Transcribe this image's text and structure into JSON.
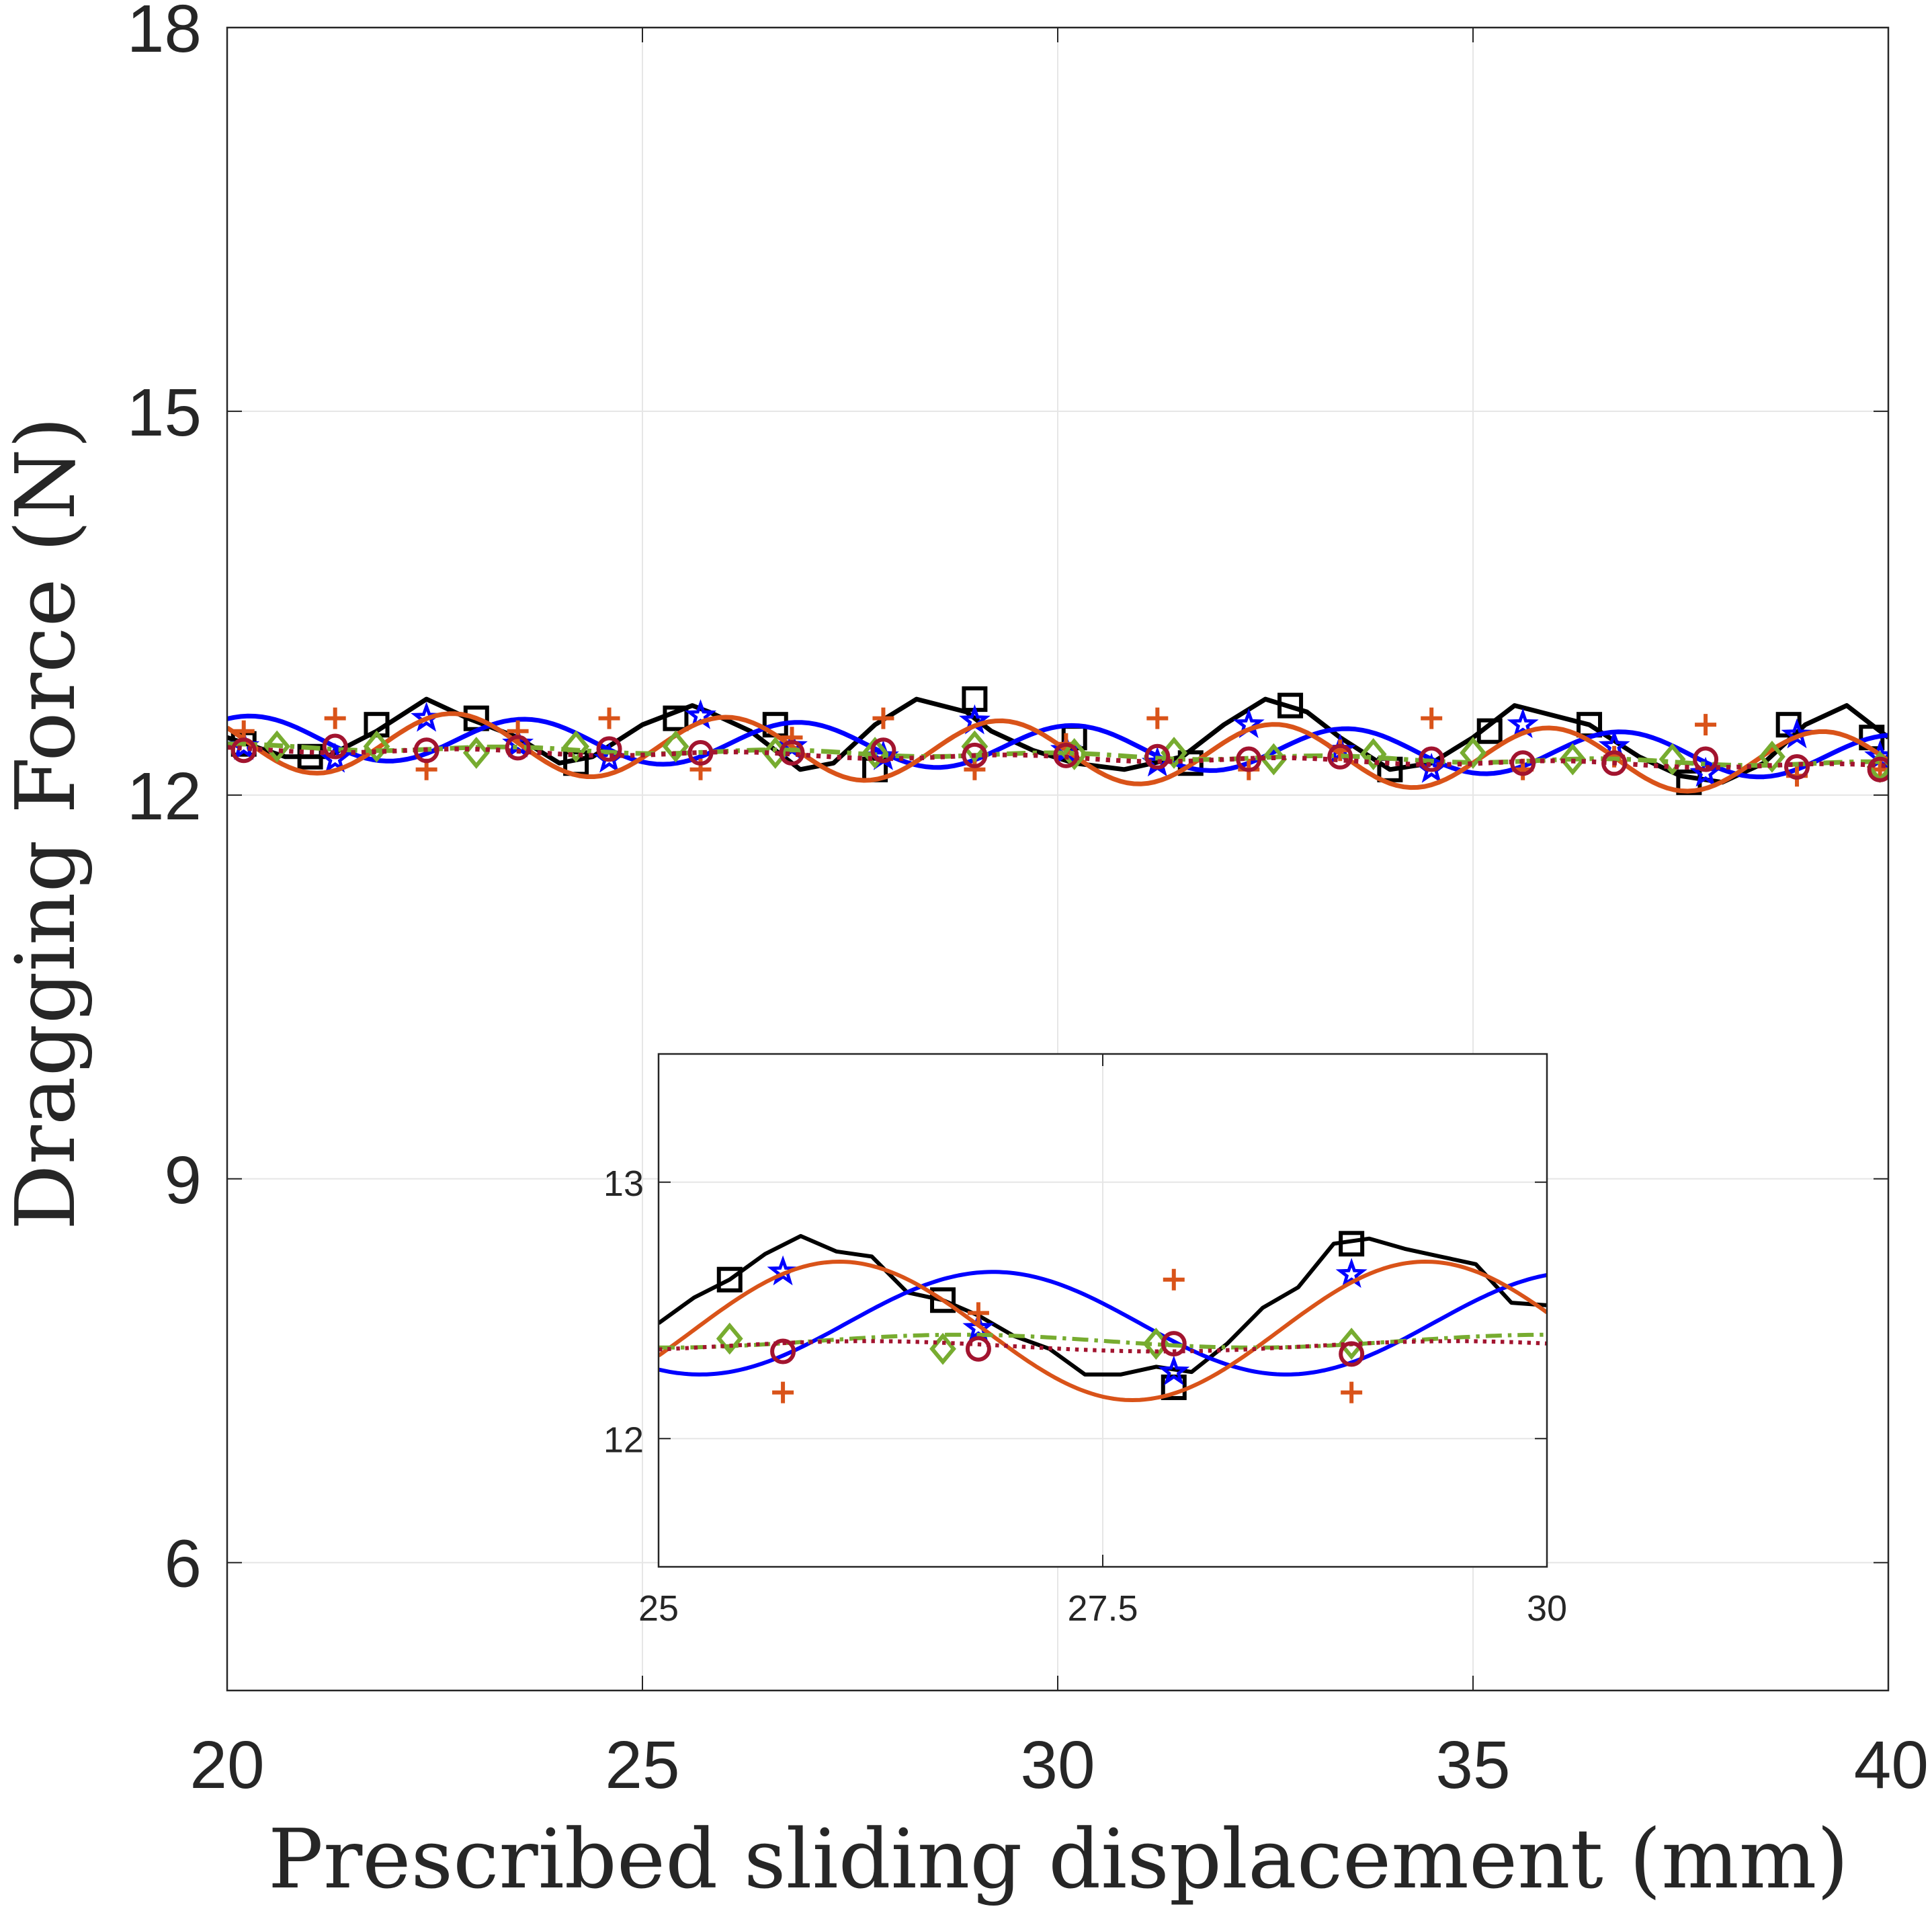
{
  "chart_data": [
    {
      "type": "line",
      "title": "",
      "xlabel": "Prescribed sliding displacement (mm)",
      "ylabel": "Dragging Force (N)",
      "xlim": [
        20,
        40
      ],
      "ylim": [
        5,
        18
      ],
      "x_ticks": [
        "20",
        "25",
        "30",
        "35",
        "40"
      ],
      "y_ticks": [
        "6",
        "9",
        "12",
        "15",
        "18"
      ],
      "x_tick_values": [
        20,
        25,
        30,
        35,
        40
      ],
      "y_tick_values": [
        6,
        9,
        12,
        15,
        18
      ],
      "grid": true,
      "legend": "none",
      "series": [
        {
          "color": "#000000",
          "marker": "square",
          "style": "solid",
          "x": [
            20.0,
            20.7,
            21.2,
            21.8,
            22.4,
            22.9,
            23.5,
            24.0,
            24.4,
            25.0,
            25.6,
            25.8,
            26.3,
            26.9,
            27.3,
            27.8,
            28.3,
            28.9,
            29.2,
            29.7,
            30.2,
            30.8,
            31.5,
            32.0,
            32.5,
            33.0,
            33.4,
            34.0,
            34.5,
            35.0,
            35.5,
            35.8,
            36.4,
            37.0,
            37.5,
            38.0,
            38.5,
            39.0,
            39.5,
            40.0
          ],
          "y": [
            12.45,
            12.3,
            12.3,
            12.5,
            12.75,
            12.6,
            12.45,
            12.25,
            12.3,
            12.55,
            12.7,
            12.65,
            12.5,
            12.2,
            12.25,
            12.55,
            12.75,
            12.65,
            12.5,
            12.35,
            12.25,
            12.2,
            12.3,
            12.55,
            12.75,
            12.65,
            12.45,
            12.2,
            12.25,
            12.45,
            12.7,
            12.65,
            12.55,
            12.3,
            12.15,
            12.1,
            12.25,
            12.55,
            12.7,
            12.45
          ],
          "marker_x": [
            20.2,
            21.0,
            21.8,
            23.0,
            24.2,
            25.4,
            26.6,
            27.8,
            29.0,
            30.2,
            31.6,
            32.8,
            34.0,
            35.2,
            36.4,
            37.6,
            38.8,
            39.8
          ],
          "marker_y": [
            12.4,
            12.3,
            12.55,
            12.6,
            12.25,
            12.6,
            12.55,
            12.2,
            12.75,
            12.45,
            12.25,
            12.7,
            12.2,
            12.5,
            12.55,
            12.1,
            12.55,
            12.45
          ]
        },
        {
          "color": "#0000ff",
          "marker": "star",
          "style": "solid",
          "amp": 0.17,
          "offset": 12.45,
          "offset_slope": -0.0075,
          "period": 3.3,
          "phase": 0.65,
          "marker_x": [
            20.2,
            21.3,
            22.4,
            23.5,
            24.6,
            25.7,
            26.8,
            27.9,
            29.0,
            30.1,
            31.2,
            32.3,
            33.4,
            34.5,
            35.6,
            36.7,
            37.8,
            38.9,
            39.9
          ],
          "marker_y": [
            12.38,
            12.28,
            12.6,
            12.4,
            12.28,
            12.62,
            12.38,
            12.3,
            12.58,
            12.35,
            12.25,
            12.55,
            12.35,
            12.2,
            12.55,
            12.38,
            12.17,
            12.47,
            12.3
          ]
        },
        {
          "color": "#d95319",
          "marker": "plus",
          "style": "solid",
          "amp": 0.24,
          "offset": 12.42,
          "offset_slope": -0.0085,
          "period": 3.3,
          "phase": 2.3,
          "marker_x": [
            20.2,
            21.3,
            22.4,
            23.5,
            24.6,
            25.7,
            26.8,
            27.9,
            29.0,
            30.1,
            31.2,
            32.3,
            33.4,
            34.5,
            35.6,
            36.7,
            37.8,
            38.9,
            39.9
          ],
          "marker_y": [
            12.5,
            12.6,
            12.2,
            12.5,
            12.6,
            12.2,
            12.45,
            12.6,
            12.2,
            12.4,
            12.6,
            12.2,
            12.35,
            12.6,
            12.2,
            12.3,
            12.55,
            12.15,
            12.2
          ]
        },
        {
          "color": "#77ac30",
          "marker": "diamond",
          "style": "dash-dot",
          "amp": 0.02,
          "offset": 12.38,
          "offset_slope": -0.007,
          "period": 3.3,
          "phase": 1.0,
          "marker_x": [
            20.6,
            21.8,
            23.0,
            24.2,
            25.4,
            26.6,
            27.8,
            29.0,
            30.2,
            31.4,
            32.6,
            33.8,
            35.0,
            36.2,
            37.4,
            38.6,
            39.9
          ],
          "marker_y": [
            12.38,
            12.38,
            12.33,
            12.38,
            12.38,
            12.33,
            12.33,
            12.38,
            12.32,
            12.33,
            12.28,
            12.32,
            12.33,
            12.28,
            12.28,
            12.3,
            12.22
          ]
        },
        {
          "color": "#a2142f",
          "marker": "circle",
          "style": "dotted",
          "amp": 0.02,
          "offset": 12.36,
          "offset_slope": -0.007,
          "period": 3.3,
          "phase": 2.0,
          "marker_x": [
            20.2,
            21.3,
            22.4,
            23.5,
            24.6,
            25.7,
            26.8,
            27.9,
            29.0,
            30.1,
            31.2,
            32.3,
            33.4,
            34.5,
            35.6,
            36.7,
            37.8,
            38.9,
            39.9
          ],
          "marker_y": [
            12.35,
            12.38,
            12.35,
            12.37,
            12.36,
            12.33,
            12.33,
            12.35,
            12.31,
            12.31,
            12.3,
            12.28,
            12.3,
            12.28,
            12.25,
            12.25,
            12.28,
            12.22,
            12.2
          ]
        }
      ]
    },
    {
      "type": "line",
      "title": "",
      "xlabel": "",
      "ylabel": "",
      "xlim": [
        25,
        30
      ],
      "ylim": [
        11.5,
        13.5
      ],
      "x_ticks": [
        "25",
        "27.5",
        "30"
      ],
      "y_ticks": [
        "12",
        "13"
      ],
      "x_tick_values": [
        25,
        27.5,
        30
      ],
      "y_tick_values": [
        12,
        13
      ],
      "grid": true,
      "legend": "none",
      "series": [
        {
          "color": "#000000",
          "marker": "square",
          "style": "solid",
          "x": [
            25.0,
            25.2,
            25.4,
            25.6,
            25.8,
            26.0,
            26.2,
            26.4,
            26.6,
            26.8,
            27.0,
            27.2,
            27.4,
            27.6,
            27.8,
            28.0,
            28.2,
            28.4,
            28.6,
            28.8,
            29.0,
            29.2,
            29.4,
            29.6,
            29.8,
            30.0
          ],
          "y": [
            12.45,
            12.55,
            12.62,
            12.72,
            12.79,
            12.73,
            12.71,
            12.57,
            12.54,
            12.48,
            12.4,
            12.35,
            12.25,
            12.25,
            12.28,
            12.26,
            12.37,
            12.51,
            12.59,
            12.76,
            12.78,
            12.74,
            12.71,
            12.68,
            12.53,
            12.52
          ],
          "marker_x": [
            25.4,
            26.6,
            27.9,
            28.9
          ],
          "marker_y": [
            12.62,
            12.54,
            12.2,
            12.76
          ]
        },
        {
          "color": "#0000ff",
          "marker": "star",
          "style": "solid",
          "amp": 0.2,
          "offset": 12.45,
          "offset_slope": 0.0,
          "period": 3.3,
          "phase": 0.65,
          "marker_x": [
            25.7,
            26.8,
            27.9,
            28.9
          ],
          "marker_y": [
            12.65,
            12.43,
            12.26,
            12.64
          ]
        },
        {
          "color": "#d95319",
          "marker": "plus",
          "style": "solid",
          "amp": 0.27,
          "offset": 12.42,
          "offset_slope": 0.0,
          "period": 3.3,
          "phase": 2.3,
          "marker_x": [
            25.7,
            26.8,
            27.9,
            28.9
          ],
          "marker_y": [
            12.18,
            12.49,
            12.62,
            12.18
          ]
        },
        {
          "color": "#77ac30",
          "marker": "diamond",
          "style": "dash-dot",
          "amp": 0.025,
          "offset": 12.38,
          "offset_slope": 0.0,
          "period": 3.3,
          "phase": 1.0,
          "marker_x": [
            25.4,
            26.6,
            27.8,
            28.9
          ],
          "marker_y": [
            12.39,
            12.35,
            12.37,
            12.37
          ]
        },
        {
          "color": "#a2142f",
          "marker": "circle",
          "style": "dotted",
          "amp": 0.02,
          "offset": 12.36,
          "offset_slope": 0.0,
          "period": 3.3,
          "phase": 2.0,
          "marker_x": [
            25.7,
            26.8,
            27.9,
            28.9
          ],
          "marker_y": [
            12.34,
            12.35,
            12.37,
            12.33
          ]
        }
      ]
    }
  ]
}
